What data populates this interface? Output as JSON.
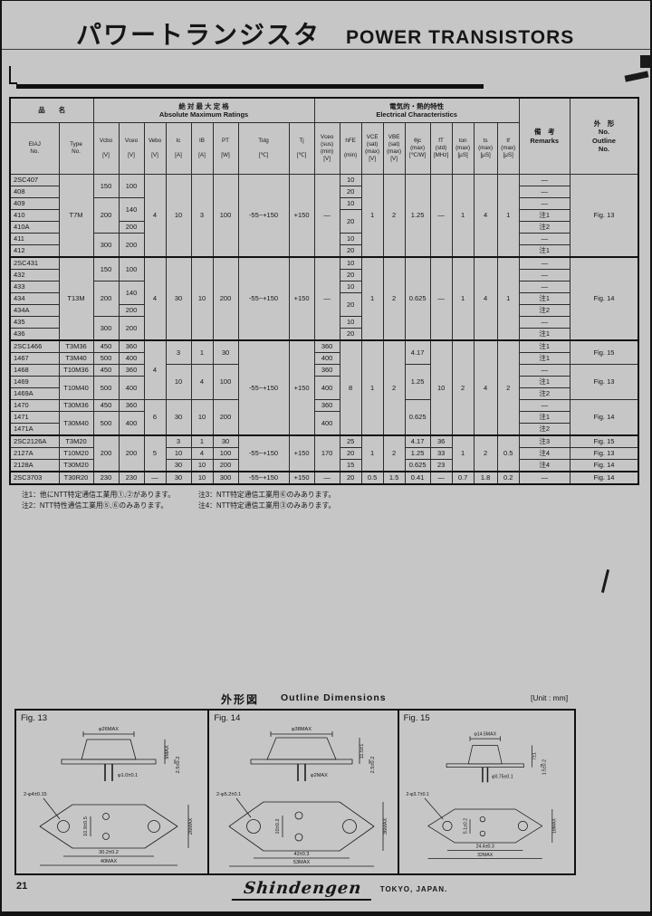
{
  "page": {
    "title_ja": "パワートランジスタ",
    "title_en": "POWER TRANSISTORS",
    "page_number": "21",
    "brand": "Shindengen",
    "brand_location": "TOKYO, JAPAN."
  },
  "table": {
    "header_rows": [
      [
        {
          "t": "品　　名",
          "cs": 2
        },
        {
          "t": "絶 対 最 大 定 格\nAbsolute Maximum Ratings",
          "cs": 8
        },
        {
          "t": "電気的・熱的特性\nElectrical Characteristics",
          "cs": 9
        },
        {
          "t": "備　考\nRemarks",
          "rs": 2
        },
        {
          "t": "外　形\nNo.\nOutline\nNo.",
          "rs": 2
        }
      ],
      [
        {
          "t": "EIAJ\nNo."
        },
        {
          "t": "Type\nNo."
        },
        {
          "t": "Vcbo\n\n[V]"
        },
        {
          "t": "Vceo\n\n[V]"
        },
        {
          "t": "Vebo\n\n[V]"
        },
        {
          "t": "Ic\n\n[A]"
        },
        {
          "t": "IB\n\n[A]"
        },
        {
          "t": "PT\n\n[W]"
        },
        {
          "t": "Tstg\n\n[℃]"
        },
        {
          "t": "Tj\n\n[℃]"
        },
        {
          "t": "Vceo\n(sus)\n(min)\n[V]"
        },
        {
          "t": "hFE\n\n(min)"
        },
        {
          "t": "VCE\n(sat)\n(max)\n[V]"
        },
        {
          "t": "VBE\n(sat)\n(max)\n[V]"
        },
        {
          "t": "θjc\n(max)\n[℃/W]"
        },
        {
          "t": "fT\n(std)\n[MHz]"
        },
        {
          "t": "ton\n(max)\n[μS]"
        },
        {
          "t": "ts\n(max)\n[μS]"
        },
        {
          "t": "tf\n(max)\n[μS]"
        }
      ]
    ],
    "group_starts": [
      7,
      14,
      22,
      25
    ],
    "rows": [
      [
        "2SC407",
        {
          "t": "T7M",
          "rs": 7
        },
        {
          "t": "150",
          "rs": 2
        },
        {
          "t": "100",
          "rs": 2
        },
        {
          "t": "4",
          "rs": 7
        },
        {
          "t": "10",
          "rs": 7
        },
        {
          "t": "3",
          "rs": 7
        },
        {
          "t": "100",
          "rs": 7
        },
        {
          "t": "-55~+150",
          "rs": 7
        },
        {
          "t": "+150",
          "rs": 7
        },
        {
          "t": "—",
          "rs": 7
        },
        "10",
        {
          "t": "1",
          "rs": 7
        },
        {
          "t": "2",
          "rs": 7
        },
        {
          "t": "1.25",
          "rs": 7
        },
        {
          "t": "—",
          "rs": 7
        },
        {
          "t": "1",
          "rs": 7
        },
        {
          "t": "4",
          "rs": 7
        },
        {
          "t": "1",
          "rs": 7
        },
        "—",
        {
          "t": "Fig. 13",
          "rs": 7
        }
      ],
      [
        "408",
        "20",
        "—"
      ],
      [
        "409",
        {
          "t": "200",
          "rs": 3
        },
        {
          "t": "140",
          "rs": 2
        },
        "10",
        "—"
      ],
      [
        "410",
        {
          "t": "20",
          "rs": 2
        },
        "注1"
      ],
      [
        "410A",
        "200",
        "注2"
      ],
      [
        "411",
        {
          "t": "300",
          "rs": 2
        },
        {
          "t": "200",
          "rs": 2
        },
        "10",
        "—"
      ],
      [
        "412",
        "20",
        "注1"
      ],
      [
        "2SC431",
        {
          "t": "T13M",
          "rs": 7
        },
        {
          "t": "150",
          "rs": 2
        },
        {
          "t": "100",
          "rs": 2
        },
        {
          "t": "4",
          "rs": 7
        },
        {
          "t": "30",
          "rs": 7
        },
        {
          "t": "10",
          "rs": 7
        },
        {
          "t": "200",
          "rs": 7
        },
        {
          "t": "-55~+150",
          "rs": 7
        },
        {
          "t": "+150",
          "rs": 7
        },
        {
          "t": "—",
          "rs": 7
        },
        "10",
        {
          "t": "1",
          "rs": 7
        },
        {
          "t": "2",
          "rs": 7
        },
        {
          "t": "0.625",
          "rs": 7
        },
        {
          "t": "—",
          "rs": 7
        },
        {
          "t": "1",
          "rs": 7
        },
        {
          "t": "4",
          "rs": 7
        },
        {
          "t": "1",
          "rs": 7
        },
        "—",
        {
          "t": "Fig. 14",
          "rs": 7
        }
      ],
      [
        "432",
        "20",
        "—"
      ],
      [
        "433",
        {
          "t": "200",
          "rs": 3
        },
        {
          "t": "140",
          "rs": 2
        },
        "10",
        "—"
      ],
      [
        "434",
        {
          "t": "20",
          "rs": 2
        },
        "注1"
      ],
      [
        "434A",
        "200",
        "注2"
      ],
      [
        "435",
        {
          "t": "300",
          "rs": 2
        },
        {
          "t": "200",
          "rs": 2
        },
        "10",
        "—"
      ],
      [
        "436",
        "20",
        "注1"
      ],
      [
        "2SC1466",
        "T3M36",
        "450",
        "360",
        {
          "t": "4",
          "rs": 5
        },
        {
          "t": "3",
          "rs": 2
        },
        {
          "t": "1",
          "rs": 2
        },
        {
          "t": "30",
          "rs": 2
        },
        {
          "t": "-55~+150",
          "rs": 8
        },
        {
          "t": "+150",
          "rs": 8
        },
        "360",
        {
          "t": "8",
          "rs": 8
        },
        {
          "t": "1",
          "rs": 8
        },
        {
          "t": "2",
          "rs": 8
        },
        {
          "t": "4.17",
          "rs": 2
        },
        {
          "t": "10",
          "rs": 8
        },
        {
          "t": "2",
          "rs": 8
        },
        {
          "t": "4",
          "rs": 8
        },
        {
          "t": "2",
          "rs": 8
        },
        "注1",
        {
          "t": "Fig. 15",
          "rs": 2
        }
      ],
      [
        "1467",
        "T3M40",
        "500",
        "400",
        "400",
        "注1"
      ],
      [
        "1468",
        "T10M36",
        "450",
        "360",
        {
          "t": "10",
          "rs": 3
        },
        {
          "t": "4",
          "rs": 3
        },
        {
          "t": "100",
          "rs": 3
        },
        "360",
        {
          "t": "1.25",
          "rs": 3
        },
        "—",
        {
          "t": "Fig. 13",
          "rs": 3
        }
      ],
      [
        "1469",
        {
          "t": "T10M40",
          "rs": 2
        },
        {
          "t": "500",
          "rs": 2
        },
        {
          "t": "400",
          "rs": 2
        },
        {
          "t": "400",
          "rs": 2
        },
        "注1"
      ],
      [
        "1469A",
        "注2"
      ],
      [
        "1470",
        "T30M36",
        "450",
        "360",
        {
          "t": "6",
          "rs": 3
        },
        {
          "t": "30",
          "rs": 3
        },
        {
          "t": "10",
          "rs": 3
        },
        {
          "t": "200",
          "rs": 3
        },
        "360",
        {
          "t": "0.625",
          "rs": 3
        },
        "—",
        {
          "t": "Fig. 14",
          "rs": 3
        }
      ],
      [
        "1471",
        {
          "t": "T30M40",
          "rs": 2
        },
        {
          "t": "500",
          "rs": 2
        },
        {
          "t": "400",
          "rs": 2
        },
        {
          "t": "400",
          "rs": 2
        },
        "注1"
      ],
      [
        "1471A",
        "注2"
      ],
      [
        "2SC2126A",
        "T3M20",
        {
          "t": "200",
          "rs": 3
        },
        {
          "t": "200",
          "rs": 3
        },
        {
          "t": "5",
          "rs": 3
        },
        "3",
        "1",
        "30",
        {
          "t": "-55~+150",
          "rs": 3
        },
        {
          "t": "+150",
          "rs": 3
        },
        {
          "t": "170",
          "rs": 3
        },
        "25",
        {
          "t": "1",
          "rs": 3
        },
        {
          "t": "2",
          "rs": 3
        },
        "4.17",
        "36",
        {
          "t": "1",
          "rs": 3
        },
        {
          "t": "2",
          "rs": 3
        },
        {
          "t": "0.5",
          "rs": 3
        },
        "注3",
        "Fig. 15"
      ],
      [
        "2127A",
        "T10M20",
        "10",
        "4",
        "100",
        "20",
        "1.25",
        "33",
        "注4",
        "Fig. 13"
      ],
      [
        "2128A",
        "T30M20",
        "30",
        "10",
        "200",
        "15",
        "0.625",
        "23",
        "注4",
        "Fig. 14"
      ],
      [
        "2SC3703",
        "T30R20",
        "230",
        "230",
        "—",
        "30",
        "10",
        "300",
        "-55~+150",
        "+150",
        "—",
        "20",
        "0.5",
        "1.5",
        "0.41",
        "—",
        "0.7",
        "1.8",
        "0.2",
        "—",
        "Fig. 14"
      ]
    ]
  },
  "notes": {
    "n1": "注1：他にNTT特定通信工業用①,②があります。",
    "n2": "注2：NTT特性通信工業用⑤,⑥のみあります。",
    "n3": "注3：NTT特定通信工業用⑥のみあります。",
    "n4": "注4：NTT特定通信工業用③のみあります。"
  },
  "outline": {
    "title_ja": "外形図",
    "title_en": "Outline Dimensions",
    "unit": "[Unit : mm]",
    "figs": [
      {
        "label": "Fig. 13",
        "cap_dia": "φ26MAX",
        "pin_dia": "φ1.0±0.1",
        "cap_h": "9MAX",
        "seat": "2.5±0.2",
        "hole": "2-φ4±0.15",
        "pin_pitch": "10.9±0.5",
        "hole_span": "30.2±0.2",
        "body_w": "40MAX",
        "body_h": "26MAX"
      },
      {
        "label": "Fig. 14",
        "cap_dia": "φ38MAX",
        "pin_dia": "φ2MAX",
        "cap_h": "11.5±1",
        "seat": "2.5±0.2",
        "hole": "2-φ5.2±0.1",
        "pin_pitch": "10±0.2",
        "hole_span": "42±0.3",
        "body_w": "53MAX",
        "body_h": "36MAX"
      },
      {
        "label": "Fig. 15",
        "cap_dia": "φ14.5MAX",
        "pin_dia": "φ0.75±0.1",
        "cap_h": "7±1",
        "seat": "1.5±0.2",
        "hole": "2-φ3.7±0.1",
        "pin_pitch": "5.1±0.2",
        "hole_span": "24.4±0.3",
        "body_w": "32MAX",
        "body_h": "18MAX"
      }
    ]
  }
}
